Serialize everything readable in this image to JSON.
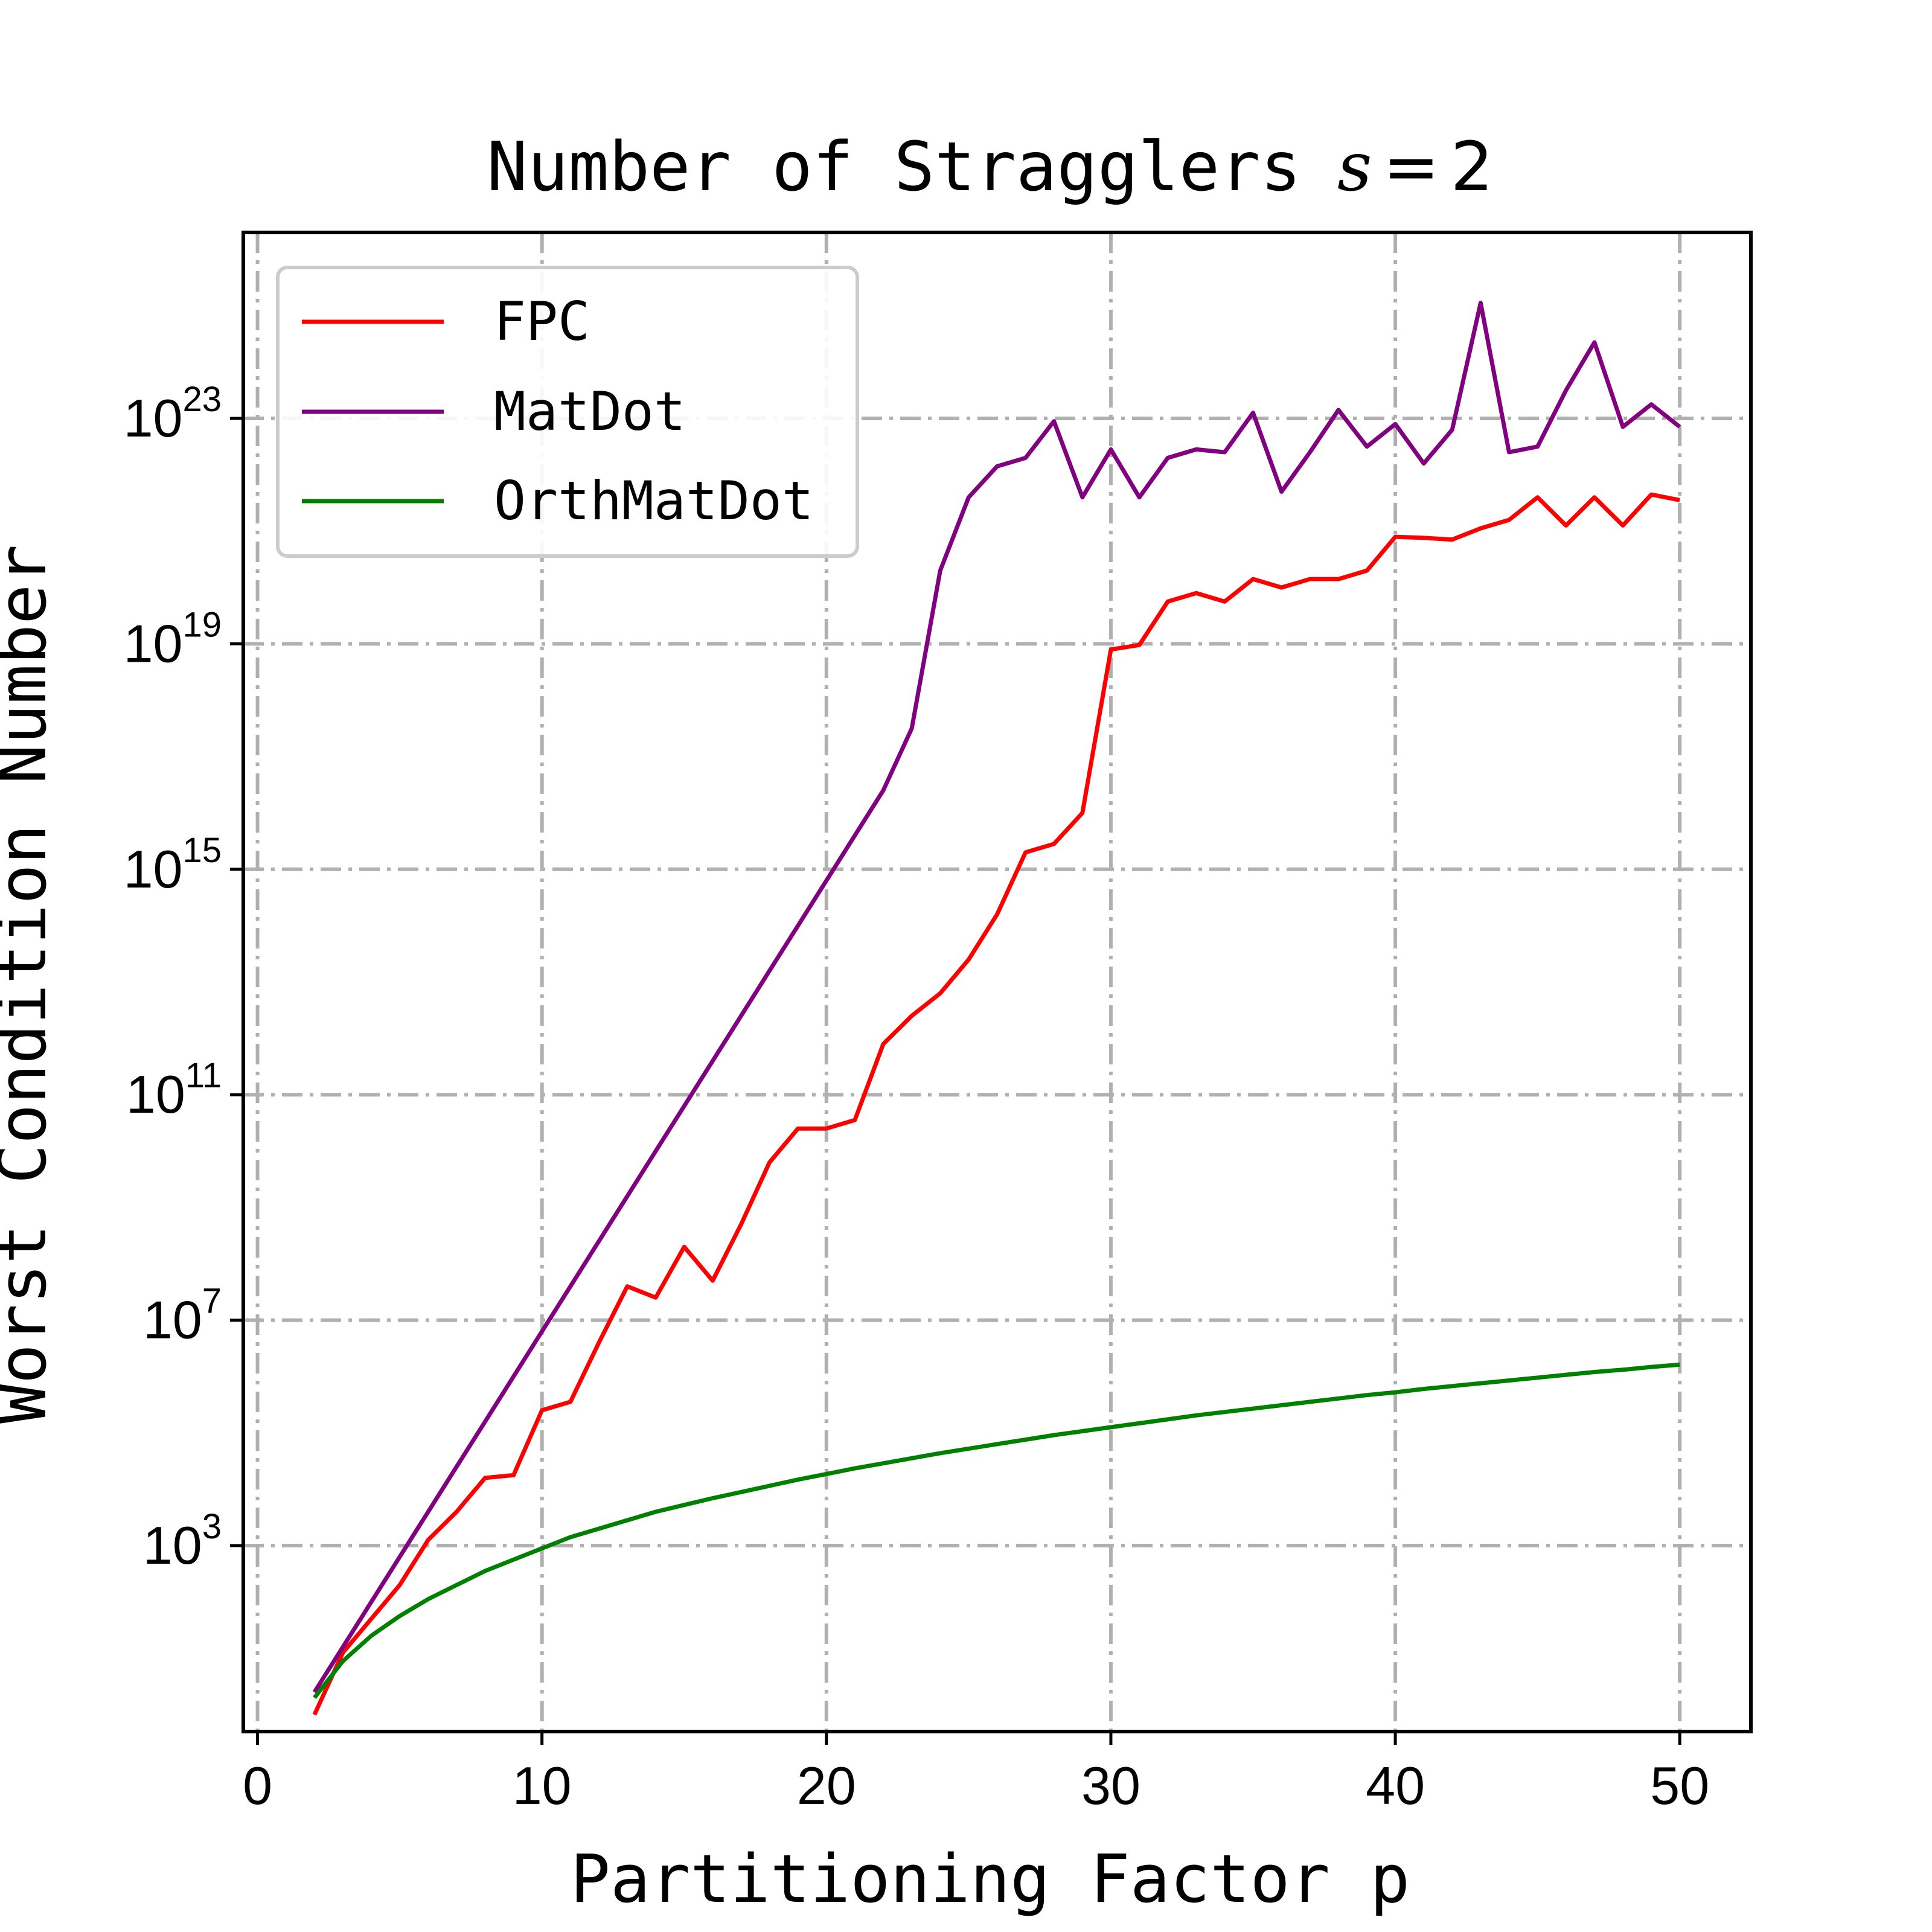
{
  "chart_data": {
    "type": "line",
    "title": "Number of Stragglers",
    "title_math": {
      "var": "s",
      "eq": "=",
      "value": "2"
    },
    "xlabel": "Partitioning Factor p",
    "ylabel": "Worst Condition Number",
    "xlim": [
      -0.5,
      52.5
    ],
    "ylim_log10": [
      -0.3,
      26.3
    ],
    "y_scale": "log",
    "grid": true,
    "legend_position": "top-left",
    "x_ticks": [
      {
        "label": "0",
        "value": 0
      },
      {
        "label": "10",
        "value": 10
      },
      {
        "label": "20",
        "value": 20
      },
      {
        "label": "30",
        "value": 30
      },
      {
        "label": "40",
        "value": 40
      },
      {
        "label": "50",
        "value": 50
      }
    ],
    "y_ticks": [
      {
        "base": "10",
        "exp": "3",
        "log10": 3
      },
      {
        "base": "10",
        "exp": "7",
        "log10": 7
      },
      {
        "base": "10",
        "exp": "11",
        "log10": 11
      },
      {
        "base": "10",
        "exp": "15",
        "log10": 15
      },
      {
        "base": "10",
        "exp": "19",
        "log10": 19
      },
      {
        "base": "10",
        "exp": "23",
        "log10": 23
      }
    ],
    "x": [
      2,
      3,
      4,
      5,
      6,
      7,
      8,
      9,
      10,
      11,
      12,
      13,
      14,
      15,
      16,
      17,
      18,
      19,
      20,
      21,
      22,
      23,
      24,
      25,
      26,
      27,
      28,
      29,
      30,
      31,
      32,
      33,
      34,
      35,
      36,
      37,
      38,
      39,
      40,
      41,
      42,
      43,
      44,
      45,
      46,
      47,
      48,
      49,
      50
    ],
    "series": [
      {
        "name": "FPC",
        "color": "#ff0000",
        "log10_values": [
          0.0,
          1.1,
          1.7,
          2.3,
          3.1,
          3.6,
          4.2,
          4.25,
          5.4,
          5.55,
          6.6,
          7.6,
          7.4,
          8.3,
          7.7,
          8.7,
          9.8,
          10.4,
          10.4,
          10.55,
          11.9,
          12.4,
          12.8,
          13.4,
          14.2,
          15.3,
          15.45,
          16.0,
          18.9,
          18.98,
          19.75,
          19.9,
          19.75,
          20.15,
          20.0,
          20.15,
          20.15,
          20.3,
          20.9,
          20.88,
          20.85,
          21.05,
          21.2,
          21.6,
          21.1,
          21.6,
          21.1,
          21.65,
          21.55
        ]
      },
      {
        "name": "MatDot",
        "color": "#800080",
        "log10_values": [
          0.4,
          1.2,
          2.0,
          2.8,
          3.6,
          4.4,
          5.2,
          6.0,
          6.8,
          7.6,
          8.4,
          9.2,
          10.0,
          10.8,
          11.6,
          12.4,
          13.2,
          14.0,
          14.8,
          15.6,
          16.4,
          17.5,
          20.3,
          21.6,
          22.15,
          22.3,
          22.95,
          21.6,
          22.45,
          21.6,
          22.3,
          22.45,
          22.4,
          23.1,
          21.7,
          22.4,
          23.15,
          22.5,
          22.9,
          22.2,
          22.8,
          25.05,
          22.4,
          22.5,
          23.5,
          24.35,
          22.85,
          23.25,
          22.85
        ]
      },
      {
        "name": "OrthMatDot",
        "color": "#008000",
        "log10_values": [
          0.3,
          0.95,
          1.4,
          1.75,
          2.05,
          2.3,
          2.55,
          2.75,
          2.95,
          3.15,
          3.3,
          3.45,
          3.6,
          3.72,
          3.84,
          3.95,
          4.06,
          4.17,
          4.27,
          4.37,
          4.46,
          4.55,
          4.64,
          4.72,
          4.8,
          4.88,
          4.96,
          5.03,
          5.1,
          5.17,
          5.24,
          5.31,
          5.37,
          5.43,
          5.49,
          5.55,
          5.61,
          5.67,
          5.72,
          5.78,
          5.83,
          5.88,
          5.93,
          5.98,
          6.03,
          6.08,
          6.12,
          6.17,
          6.21
        ]
      }
    ]
  }
}
